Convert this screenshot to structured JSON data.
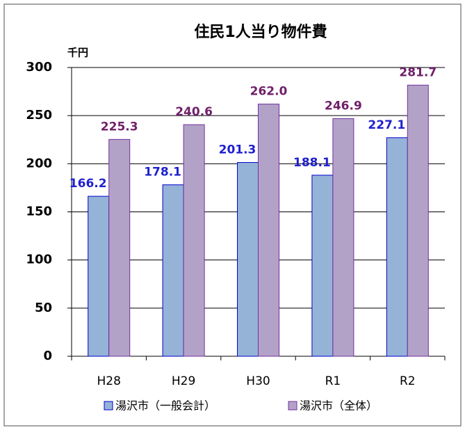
{
  "chart_data": {
    "type": "bar",
    "title": "住民1人当り物件費",
    "y_unit": "千円",
    "categories": [
      "H28",
      "H29",
      "H30",
      "R1",
      "R2"
    ],
    "series": [
      {
        "name": "湯沢市（一般会計）",
        "color": "#95b3d7",
        "edge": "#0000cc",
        "label_color": "#1f1fd0",
        "values": [
          166.2,
          178.1,
          201.3,
          188.1,
          227.1
        ]
      },
      {
        "name": "湯沢市（全体）",
        "color": "#b3a2c7",
        "edge": "#7030a0",
        "label_color": "#70206a",
        "values": [
          225.3,
          240.6,
          262.0,
          246.9,
          281.7
        ],
        "value_labels": [
          "225.3",
          "240.6",
          "262.0",
          "246.9",
          "281.7"
        ]
      }
    ],
    "ylim": [
      0,
      300
    ],
    "yticks": [
      0,
      50,
      100,
      150,
      200,
      250,
      300
    ],
    "grid": true
  }
}
